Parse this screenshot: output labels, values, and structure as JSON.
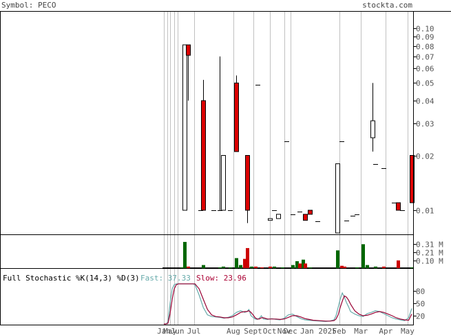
{
  "header": {
    "symbol_label": "Symbol: PECO",
    "source_label": "stockta.com"
  },
  "colors": {
    "up": "#ffffff",
    "down": "#dd0000",
    "vol_up": "#006600",
    "vol_down": "#cc0000",
    "fast_line": "#66aaaa",
    "slow_line": "#990033",
    "fast_text": "#66aaaa",
    "slow_text": "#aa0033",
    "grid": "#c0c0c0",
    "axis_text": "#555555"
  },
  "chart_data": [
    {
      "type": "candlestick",
      "panel": "price",
      "y_scale": "log",
      "ylim": [
        0.0075,
        0.12
      ],
      "ytick_labels": [
        "0.10",
        "0.09",
        "0.08",
        "0.07",
        "0.06",
        "0.05",
        "0.04",
        "0.03",
        "0.02",
        "0.01"
      ],
      "ytick_values": [
        0.1,
        0.09,
        0.08,
        0.07,
        0.06,
        0.05,
        0.04,
        0.03,
        0.02,
        0.01
      ],
      "x_labels": [
        "Jan",
        "May",
        "Jun",
        "Jul",
        "Aug",
        "Sept",
        "Oct",
        "Nov",
        "Dec",
        "Jan 2025",
        "Feb",
        "Mar",
        "Apr",
        "May"
      ],
      "x_label_idx": [
        0,
        6,
        13,
        29,
        67,
        86,
        102,
        116,
        122,
        149,
        169,
        190,
        214,
        235
      ],
      "grid_idx": [
        0,
        3,
        6,
        10,
        13,
        29,
        67,
        86,
        102,
        116,
        122,
        169,
        190,
        214,
        235
      ],
      "n_bars": 240,
      "candles": [
        {
          "i": 20,
          "o": 0.01,
          "h": 0.081,
          "l": 0.01,
          "c": 0.081
        },
        {
          "i": 23,
          "o": 0.081,
          "h": 0.081,
          "l": 0.04,
          "c": 0.071
        },
        {
          "i": 35,
          "o": 0.01,
          "h": 0.01,
          "l": 0.01,
          "c": 0.01
        },
        {
          "i": 38,
          "o": 0.04,
          "h": 0.052,
          "l": 0.01,
          "c": 0.01
        },
        {
          "i": 48,
          "o": 0.01,
          "h": 0.01,
          "l": 0.01,
          "c": 0.01
        },
        {
          "i": 54,
          "o": 0.01,
          "h": 0.07,
          "l": 0.01,
          "c": 0.01
        },
        {
          "i": 57,
          "o": 0.01,
          "h": 0.02,
          "l": 0.01,
          "c": 0.02
        },
        {
          "i": 64,
          "o": 0.01,
          "h": 0.01,
          "l": 0.01,
          "c": 0.01
        },
        {
          "i": 70,
          "o": 0.05,
          "h": 0.055,
          "l": 0.021,
          "c": 0.021
        },
        {
          "i": 80,
          "o": 0.02,
          "h": 0.02,
          "l": 0.0085,
          "c": 0.01
        },
        {
          "i": 90,
          "o": 0.049,
          "h": 0.049,
          "l": 0.049,
          "c": 0.049
        },
        {
          "i": 102,
          "o": 0.0088,
          "h": 0.009,
          "l": 0.0088,
          "c": 0.009
        },
        {
          "i": 106,
          "o": 0.01,
          "h": 0.01,
          "l": 0.01,
          "c": 0.01
        },
        {
          "i": 110,
          "o": 0.009,
          "h": 0.0095,
          "l": 0.009,
          "c": 0.0095
        },
        {
          "i": 118,
          "o": 0.024,
          "h": 0.024,
          "l": 0.024,
          "c": 0.024
        },
        {
          "i": 124,
          "o": 0.0095,
          "h": 0.0095,
          "l": 0.0095,
          "c": 0.0095
        },
        {
          "i": 131,
          "o": 0.0098,
          "h": 0.0098,
          "l": 0.0098,
          "c": 0.0098
        },
        {
          "i": 136,
          "o": 0.0095,
          "h": 0.0095,
          "l": 0.0088,
          "c": 0.0088
        },
        {
          "i": 141,
          "o": 0.01,
          "h": 0.01,
          "l": 0.0095,
          "c": 0.0095
        },
        {
          "i": 148,
          "o": 0.0087,
          "h": 0.0087,
          "l": 0.0087,
          "c": 0.0087
        },
        {
          "i": 167,
          "o": 0.004,
          "h": 0.018,
          "l": 0.004,
          "c": 0.018
        },
        {
          "i": 171,
          "o": 0.024,
          "h": 0.024,
          "l": 0.024,
          "c": 0.024
        },
        {
          "i": 176,
          "o": 0.0088,
          "h": 0.0088,
          "l": 0.0088,
          "c": 0.0088
        },
        {
          "i": 182,
          "o": 0.0093,
          "h": 0.0093,
          "l": 0.0093,
          "c": 0.0093
        },
        {
          "i": 186,
          "o": 0.0095,
          "h": 0.0095,
          "l": 0.0095,
          "c": 0.0095
        },
        {
          "i": 201,
          "o": 0.025,
          "h": 0.05,
          "l": 0.021,
          "c": 0.031
        },
        {
          "i": 204,
          "o": 0.018,
          "h": 0.018,
          "l": 0.018,
          "c": 0.018
        },
        {
          "i": 212,
          "o": 0.017,
          "h": 0.017,
          "l": 0.017,
          "c": 0.017
        },
        {
          "i": 222,
          "o": 0.011,
          "h": 0.011,
          "l": 0.011,
          "c": 0.011
        },
        {
          "i": 226,
          "o": 0.011,
          "h": 0.011,
          "l": 0.01,
          "c": 0.01
        },
        {
          "i": 230,
          "o": 0.01,
          "h": 0.01,
          "l": 0.01,
          "c": 0.01
        },
        {
          "i": 239,
          "o": 0.02,
          "h": 0.02,
          "l": 0.011,
          "c": 0.011
        }
      ]
    },
    {
      "type": "bar",
      "panel": "volume",
      "ylim": [
        0,
        0.42
      ],
      "ytick_labels": [
        "0.31 M",
        "0.21 M",
        "0.10 M"
      ],
      "ytick_values": [
        0.31,
        0.21,
        0.1
      ],
      "bars": [
        {
          "i": 17,
          "v": 0.01,
          "dir": "up"
        },
        {
          "i": 20,
          "v": 0.34,
          "dir": "up"
        },
        {
          "i": 23,
          "v": 0.02,
          "dir": "down"
        },
        {
          "i": 38,
          "v": 0.04,
          "dir": "up"
        },
        {
          "i": 54,
          "v": 0.01,
          "dir": "up"
        },
        {
          "i": 57,
          "v": 0.02,
          "dir": "up"
        },
        {
          "i": 64,
          "v": 0.01,
          "dir": "up"
        },
        {
          "i": 70,
          "v": 0.13,
          "dir": "up"
        },
        {
          "i": 74,
          "v": 0.04,
          "dir": "up"
        },
        {
          "i": 78,
          "v": 0.12,
          "dir": "down"
        },
        {
          "i": 80,
          "v": 0.26,
          "dir": "down"
        },
        {
          "i": 84,
          "v": 0.02,
          "dir": "up"
        },
        {
          "i": 88,
          "v": 0.02,
          "dir": "down"
        },
        {
          "i": 94,
          "v": 0.01,
          "dir": "down"
        },
        {
          "i": 102,
          "v": 0.02,
          "dir": "down"
        },
        {
          "i": 106,
          "v": 0.02,
          "dir": "up"
        },
        {
          "i": 114,
          "v": 0.01,
          "dir": "up"
        },
        {
          "i": 124,
          "v": 0.04,
          "dir": "up"
        },
        {
          "i": 128,
          "v": 0.09,
          "dir": "up"
        },
        {
          "i": 131,
          "v": 0.06,
          "dir": "down"
        },
        {
          "i": 134,
          "v": 0.11,
          "dir": "up"
        },
        {
          "i": 136,
          "v": 0.06,
          "dir": "down"
        },
        {
          "i": 141,
          "v": 0.01,
          "dir": "up"
        },
        {
          "i": 167,
          "v": 0.23,
          "dir": "up"
        },
        {
          "i": 171,
          "v": 0.03,
          "dir": "down"
        },
        {
          "i": 174,
          "v": 0.02,
          "dir": "down"
        },
        {
          "i": 186,
          "v": 0.01,
          "dir": "up"
        },
        {
          "i": 192,
          "v": 0.31,
          "dir": "up"
        },
        {
          "i": 196,
          "v": 0.04,
          "dir": "up"
        },
        {
          "i": 204,
          "v": 0.02,
          "dir": "up"
        },
        {
          "i": 212,
          "v": 0.02,
          "dir": "down"
        },
        {
          "i": 226,
          "v": 0.1,
          "dir": "down"
        },
        {
          "i": 239,
          "v": 0.01,
          "dir": "up"
        }
      ]
    },
    {
      "type": "line",
      "panel": "stochastic",
      "title": "Full Stochastic %K(14,3) %D(3)",
      "fast_label": "Fast: 37.33",
      "slow_label": "Slow: 23.96",
      "ylim": [
        0,
        100
      ],
      "ytick_labels": [
        "80",
        "50",
        "20"
      ],
      "ytick_values": [
        80,
        50,
        20
      ],
      "x": [
        0,
        2,
        4,
        6,
        8,
        10,
        12,
        14,
        16,
        18,
        20,
        22,
        24,
        26,
        28,
        30,
        34,
        38,
        42,
        46,
        50,
        54,
        58,
        62,
        66,
        70,
        74,
        78,
        80,
        82,
        84,
        86,
        88,
        90,
        92,
        94,
        96,
        100,
        104,
        108,
        112,
        116,
        120,
        124,
        128,
        132,
        136,
        140,
        144,
        150,
        156,
        160,
        164,
        166,
        168,
        170,
        172,
        174,
        176,
        178,
        180,
        184,
        188,
        192,
        196,
        200,
        204,
        208,
        212,
        216,
        220,
        224,
        228,
        232,
        236,
        239
      ],
      "series": [
        {
          "name": "Fast",
          "values": [
            0,
            0,
            5,
            50,
            85,
            95,
            97,
            97,
            97,
            97,
            97,
            97,
            97,
            97,
            97,
            95,
            70,
            40,
            22,
            18,
            17,
            16,
            14,
            16,
            20,
            28,
            32,
            28,
            30,
            35,
            20,
            16,
            12,
            11,
            14,
            20,
            12,
            11,
            13,
            11,
            10,
            14,
            22,
            24,
            18,
            13,
            10,
            9,
            8,
            7,
            6,
            7,
            10,
            20,
            40,
            60,
            75,
            65,
            52,
            42,
            30,
            24,
            20,
            18,
            25,
            28,
            32,
            30,
            25,
            20,
            15,
            12,
            10,
            8,
            15,
            37.33
          ]
        },
        {
          "name": "Slow",
          "values": [
            0,
            0,
            2,
            25,
            60,
            85,
            95,
            97,
            97,
            97,
            97,
            97,
            97,
            97,
            97,
            97,
            85,
            60,
            35,
            22,
            18,
            17,
            15,
            15,
            17,
            22,
            28,
            30,
            30,
            32,
            28,
            22,
            15,
            12,
            12,
            15,
            15,
            12,
            12,
            12,
            11,
            12,
            16,
            20,
            20,
            17,
            13,
            11,
            9,
            8,
            7,
            7,
            8,
            12,
            22,
            40,
            55,
            68,
            65,
            58,
            48,
            32,
            24,
            20,
            21,
            24,
            28,
            30,
            28,
            24,
            20,
            15,
            12,
            10,
            9,
            23.96
          ]
        }
      ]
    }
  ]
}
